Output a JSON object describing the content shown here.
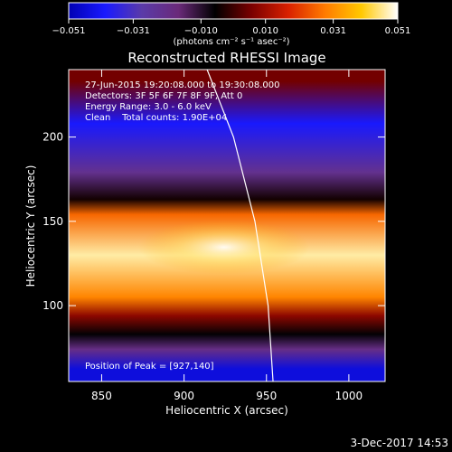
{
  "chart_data": {
    "type": "heatmap",
    "title": "Reconstructed RHESSI Image",
    "xlabel": "Heliocentric X (arcsec)",
    "ylabel": "Heliocentric Y (arcsec)",
    "xlim": [
      830,
      1022
    ],
    "ylim": [
      55,
      240
    ],
    "x_ticks": [
      "850",
      "900",
      "950",
      "1000"
    ],
    "x_tick_values": [
      850,
      900,
      950,
      1000
    ],
    "y_ticks": [
      "100",
      "150",
      "200"
    ],
    "y_tick_values": [
      100,
      150,
      200
    ],
    "colorbar": {
      "tick_labels": [
        "−0.051",
        "−0.031",
        "−0.010",
        "0.010",
        "0.031",
        "0.051"
      ],
      "tick_values": [
        -0.051,
        -0.031,
        -0.01,
        0.01,
        0.031,
        0.051
      ],
      "units": "(photons cm⁻² s⁻¹ asec⁻²)",
      "colors": [
        "#0000b4",
        "#1a1aff",
        "#5a3aa8",
        "#6a2a7a",
        "#000000",
        "#7a0000",
        "#d82000",
        "#ff7a00",
        "#ffc800",
        "#ffffff"
      ]
    },
    "annotations": [
      "27-Jun-2015 19:20:08.000 to 19:30:08.000",
      "Detectors: 3F 5F 6F 7F 8F 9F, Att 0",
      "Energy Range: 3.0 - 6.0 keV",
      "Clean    Total counts: 1.90E+04"
    ],
    "peak_label": "Position of Peak = [927,140]",
    "peak": [
      927,
      140
    ],
    "limb_curve": [
      [
        914,
        240
      ],
      [
        930,
        200
      ],
      [
        943,
        150
      ],
      [
        951,
        100
      ],
      [
        954,
        55
      ]
    ],
    "bands": [
      {
        "y_from": 226,
        "y_to": 240,
        "level": 0.005
      },
      {
        "y_from": 190,
        "y_to": 226,
        "level": -0.04
      },
      {
        "y_from": 168,
        "y_to": 190,
        "level": -0.022
      },
      {
        "y_from": 158,
        "y_to": 168,
        "level": -0.004
      },
      {
        "y_from": 150,
        "y_to": 158,
        "level": 0.026
      },
      {
        "y_from": 110,
        "y_to": 150,
        "level": 0.047
      },
      {
        "y_from": 100,
        "y_to": 110,
        "level": 0.03
      },
      {
        "y_from": 88,
        "y_to": 100,
        "level": 0.008
      },
      {
        "y_from": 78,
        "y_to": 88,
        "level": -0.006
      },
      {
        "y_from": 70,
        "y_to": 78,
        "level": -0.02
      },
      {
        "y_from": 55,
        "y_to": 70,
        "level": -0.045
      }
    ]
  },
  "footer": {
    "timestamp": "3-Dec-2017 14:53"
  }
}
